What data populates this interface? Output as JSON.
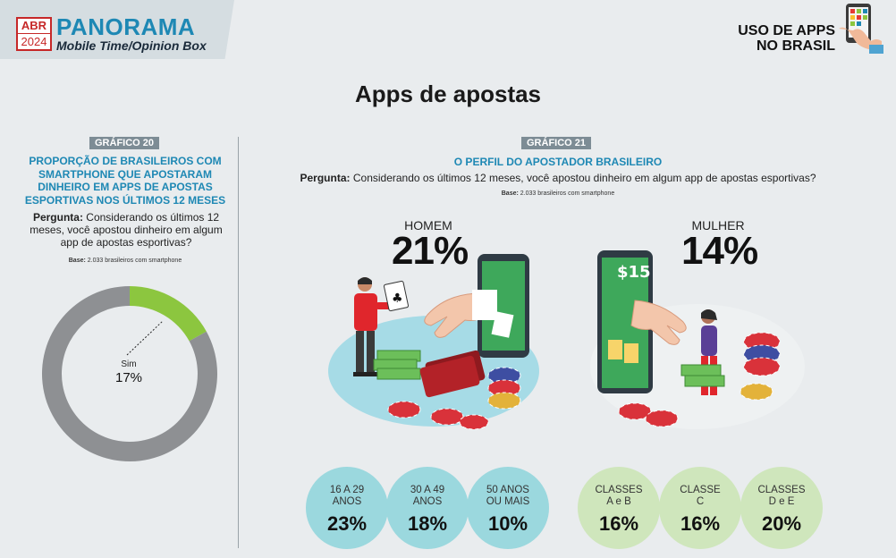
{
  "header": {
    "badge_month": "ABR",
    "badge_year": "2024",
    "brand": "PANORAMA",
    "subtitle": "Mobile Time/Opinion Box",
    "section_line1": "USO DE APPS",
    "section_line2": "NO BRASIL"
  },
  "page_title": "Apps de apostas",
  "left": {
    "tag": "GRÁFICO 20",
    "title": "PROPORÇÃO DE BRASILEIROS COM SMARTPHONE QUE APOSTARAM DINHEIRO EM APPS DE APOSTAS ESPORTIVAS NOS ÚLTIMOS 12 MESES",
    "question_label": "Pergunta:",
    "question_text": "Considerando os últimos 12 meses, você apostou dinheiro em algum app de apostas esportivas?",
    "base_label": "Base:",
    "base_text": "2.033 brasileiros com smartphone"
  },
  "right": {
    "tag": "GRÁFICO 21",
    "title": "O PERFIL DO APOSTADOR BRASILEIRO",
    "question_label": "Pergunta:",
    "question_text": "Considerando os últimos 12 meses, você apostou dinheiro em algum app de apostas esportivas?",
    "base_label": "Base:",
    "base_text": "2.033 brasileiros com smartphone"
  },
  "colors": {
    "accent_blue": "#1e88b4",
    "donut_yes": "#8cc63f",
    "donut_no": "#8e9093",
    "age_bubble": "#9bd8de",
    "class_bubble": "#cfe6bc"
  },
  "chart_data": [
    {
      "type": "pie",
      "variant": "donut",
      "slices": [
        {
          "label": "Sim",
          "value": 17,
          "display": "17%",
          "color": "#8cc63f"
        },
        {
          "value": 83,
          "color": "#8e9093"
        }
      ]
    },
    {
      "type": "bar",
      "variant": "labeled-values",
      "groups": [
        {
          "label": "HOMEM",
          "value": 21,
          "display": "21%"
        },
        {
          "label": "MULHER",
          "value": 14,
          "display": "14%"
        }
      ]
    },
    {
      "type": "bar",
      "variant": "bubbles",
      "categories": [
        "16 A 29 ANOS",
        "30 A 49 ANOS",
        "50 ANOS OU MAIS"
      ],
      "values": [
        23,
        18,
        10
      ],
      "labels": [
        {
          "line1": "16 A 29",
          "line2": "ANOS",
          "display": "23%"
        },
        {
          "line1": "30 A 49",
          "line2": "ANOS",
          "display": "18%"
        },
        {
          "line1": "50 ANOS",
          "line2": "OU MAIS",
          "display": "10%"
        }
      ]
    },
    {
      "type": "bar",
      "variant": "bubbles",
      "categories": [
        "CLASSES A e B",
        "CLASSE C",
        "CLASSES D e E"
      ],
      "values": [
        16,
        16,
        20
      ],
      "labels": [
        {
          "line1": "CLASSES",
          "line2": "A e B",
          "display": "16%"
        },
        {
          "line1": "CLASSE",
          "line2": "C",
          "display": "16%"
        },
        {
          "line1": "CLASSES",
          "line2": "D e E",
          "display": "20%"
        }
      ]
    }
  ]
}
